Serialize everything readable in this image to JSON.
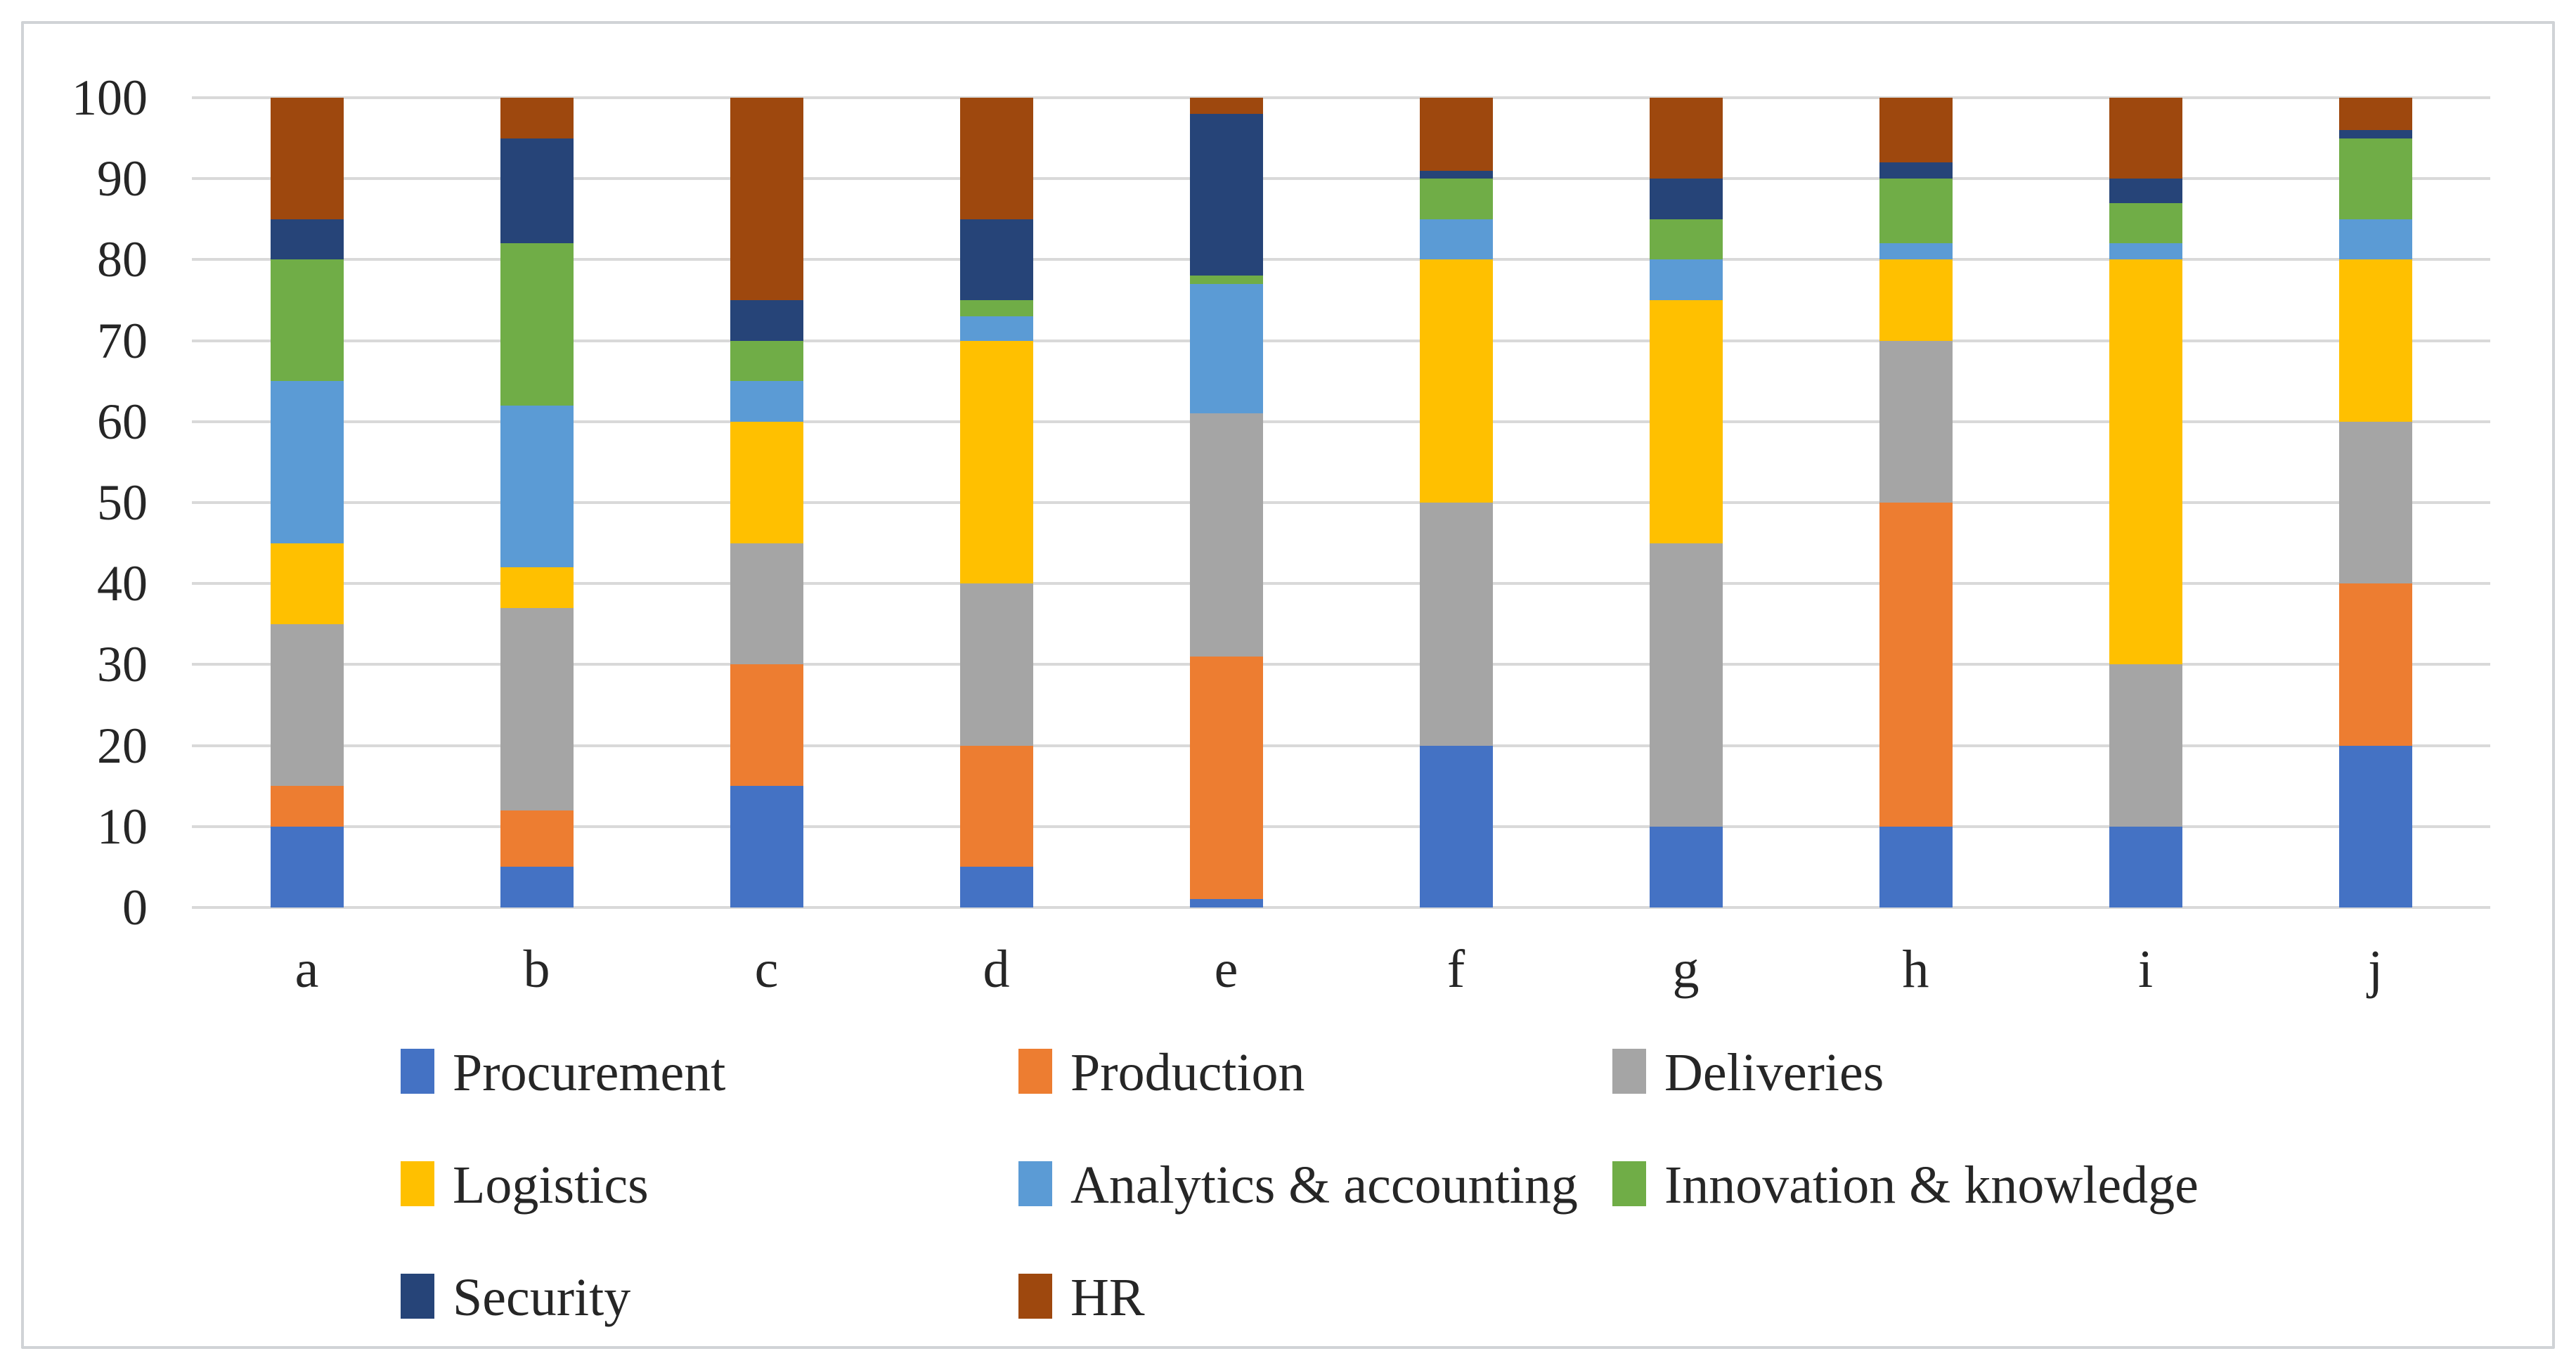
{
  "chart_data": {
    "type": "bar",
    "stacked": true,
    "percent": true,
    "title": "",
    "xlabel": "",
    "ylabel": "",
    "categories": [
      "a",
      "b",
      "c",
      "d",
      "e",
      "f",
      "g",
      "h",
      "i",
      "j"
    ],
    "series": [
      {
        "name": "Procurement",
        "color": "#4472C4",
        "values": [
          10,
          5,
          15,
          5,
          1,
          20,
          10,
          10,
          10,
          20
        ]
      },
      {
        "name": "Production",
        "color": "#ED7D31",
        "values": [
          5,
          7,
          15,
          15,
          30,
          0,
          0,
          40,
          0,
          20
        ]
      },
      {
        "name": "Deliveries",
        "color": "#A5A5A5",
        "values": [
          20,
          25,
          15,
          20,
          30,
          30,
          35,
          20,
          20,
          20
        ]
      },
      {
        "name": "Logistics",
        "color": "#FFC000",
        "values": [
          10,
          5,
          15,
          30,
          0,
          30,
          30,
          10,
          50,
          20
        ]
      },
      {
        "name": "Analytics & accounting",
        "color": "#5B9BD5",
        "values": [
          20,
          20,
          5,
          3,
          16,
          5,
          5,
          2,
          2,
          5
        ]
      },
      {
        "name": "Innovation & knowledge",
        "color": "#70AD47",
        "values": [
          15,
          20,
          5,
          2,
          1,
          5,
          5,
          8,
          5,
          10
        ]
      },
      {
        "name": "Security",
        "color": "#264478",
        "values": [
          5,
          13,
          5,
          10,
          20,
          1,
          5,
          2,
          3,
          1
        ]
      },
      {
        "name": "HR",
        "color": "#9E480E",
        "values": [
          15,
          5,
          25,
          15,
          2,
          9,
          10,
          8,
          10,
          4
        ]
      }
    ],
    "ylim": [
      0,
      100
    ],
    "yticks": [
      0,
      10,
      20,
      30,
      40,
      50,
      60,
      70,
      80,
      90,
      100
    ],
    "grid": true,
    "gridline_color": "#d9d9d9",
    "tick_label_color": "#262626",
    "legend_position": "bottom",
    "legend_rows": [
      [
        "Procurement",
        "Production",
        "Deliveries"
      ],
      [
        "Logistics",
        "Analytics & accounting",
        "Innovation & knowledge"
      ],
      [
        "Security",
        "HR"
      ]
    ]
  }
}
